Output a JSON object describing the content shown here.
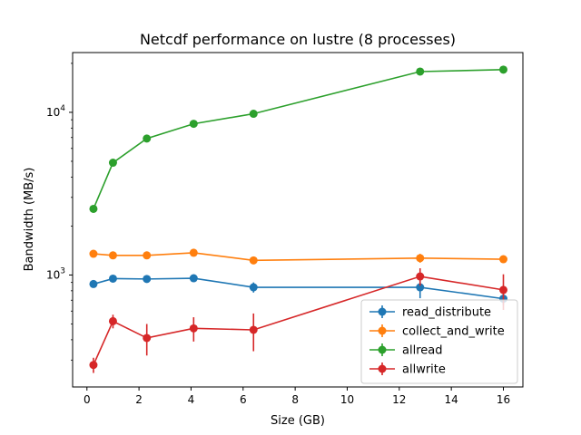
{
  "chart_data": {
    "type": "line",
    "title": "Netcdf performance on lustre (8 processes)",
    "xlabel": "Size (GB)",
    "ylabel": "Bandwidth (MB/s)",
    "xlim": [
      -0.55,
      16.75
    ],
    "ylim": [
      205,
      23300
    ],
    "yscale": "log",
    "xticks": [
      0,
      2,
      4,
      6,
      8,
      10,
      12,
      14,
      16
    ],
    "xtick_labels": [
      "0",
      "2",
      "4",
      "6",
      "8",
      "10",
      "12",
      "14",
      "16"
    ],
    "yticks_major": [
      1000,
      10000
    ],
    "ytick_labels": [
      {
        "base": "10",
        "exp": "3"
      },
      {
        "base": "10",
        "exp": "4"
      }
    ],
    "grid": false,
    "legend_position": "lower-right",
    "x": [
      0.25,
      1.0,
      2.3,
      4.1,
      6.4,
      12.8,
      16.0
    ],
    "series": [
      {
        "name": "read_distribute",
        "color": "#1f77b4",
        "values": [
          880,
          950,
          945,
          955,
          840,
          840,
          715
        ],
        "errors": [
          40,
          35,
          30,
          30,
          60,
          120,
          60
        ]
      },
      {
        "name": "collect_and_write",
        "color": "#ff7f0e",
        "values": [
          1350,
          1320,
          1320,
          1370,
          1230,
          1270,
          1250
        ],
        "errors": [
          40,
          30,
          30,
          40,
          40,
          80,
          60
        ]
      },
      {
        "name": "allread",
        "color": "#2ca02c",
        "values": [
          2550,
          4900,
          6900,
          8500,
          9800,
          17800,
          18300
        ],
        "errors": [
          60,
          150,
          200,
          250,
          300,
          700,
          900
        ]
      },
      {
        "name": "allwrite",
        "color": "#d62728",
        "values": [
          280,
          520,
          410,
          470,
          460,
          980,
          810
        ],
        "errors": [
          30,
          50,
          90,
          80,
          120,
          120,
          200
        ]
      }
    ]
  }
}
